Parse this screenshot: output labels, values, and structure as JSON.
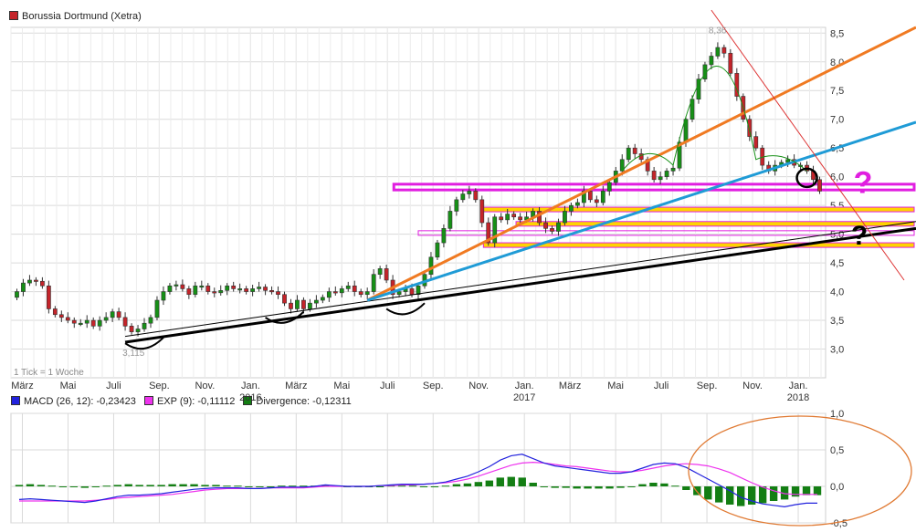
{
  "title": "Borussia Dortmund (Xetra)",
  "tick_note": "1 Tick = 1 Woche",
  "colors": {
    "up": "#169016",
    "down": "#c4242a",
    "grid": "#dadada",
    "orange_line": "#f07a22",
    "blue_line": "#1f9bd6",
    "magenta": "#e01ee0",
    "yellow": "#ffd400",
    "macd": "#2222dd",
    "exp": "#ee33ee",
    "divergence": "#137e13",
    "ellipse": "#e07a33",
    "title_swatch": "#c4242a"
  },
  "x_axis": {
    "months": [
      {
        "label": "März",
        "t": 0.5
      },
      {
        "label": "Mai",
        "t": 2.5
      },
      {
        "label": "Juli",
        "t": 4.5
      },
      {
        "label": "Sep.",
        "t": 6.5
      },
      {
        "label": "Nov.",
        "t": 8.5
      },
      {
        "label": "Jan.",
        "t": 10.5
      },
      {
        "label": "März",
        "t": 12.5
      },
      {
        "label": "Mai",
        "t": 14.5
      },
      {
        "label": "Juli",
        "t": 16.5
      },
      {
        "label": "Sep.",
        "t": 18.5
      },
      {
        "label": "Nov.",
        "t": 20.5
      },
      {
        "label": "Jan.",
        "t": 22.5
      },
      {
        "label": "März",
        "t": 24.5
      },
      {
        "label": "Mai",
        "t": 26.5
      },
      {
        "label": "Juli",
        "t": 28.5
      },
      {
        "label": "Sep.",
        "t": 30.5
      },
      {
        "label": "Nov.",
        "t": 32.5
      },
      {
        "label": "Jan.",
        "t": 34.5
      }
    ],
    "years": [
      {
        "label": "2016",
        "t": 10.5
      },
      {
        "label": "2017",
        "t": 22.5
      },
      {
        "label": "2018",
        "t": 34.5
      }
    ]
  },
  "price_legend": [],
  "macd_legend": [
    {
      "label": "MACD (26, 12): -0,23423",
      "color": "#2222dd"
    },
    {
      "label": "EXP (9): -0,11112",
      "color": "#ee33ee"
    },
    {
      "label": "Divergence: -0,12311",
      "color": "#137e13"
    }
  ],
  "annotations": {
    "high_label": "8,36",
    "low_label": "3,115",
    "question_mark": "?"
  },
  "chart_data": [
    {
      "type": "candlestick",
      "title": "Borussia Dortmund (Xetra)",
      "y_range": [
        2.5,
        8.6
      ],
      "y_ticks": [
        {
          "value": 3.0,
          "label": "3,0"
        },
        {
          "value": 3.5,
          "label": "3,5"
        },
        {
          "value": 4.0,
          "label": "4,0"
        },
        {
          "value": 4.5,
          "label": "4,5"
        },
        {
          "value": 5.0,
          "label": "5,0"
        },
        {
          "value": 5.5,
          "label": "5,5"
        },
        {
          "value": 6.0,
          "label": "6,0"
        },
        {
          "value": 6.5,
          "label": "6,5"
        },
        {
          "value": 7.0,
          "label": "7,0"
        },
        {
          "value": 7.5,
          "label": "7,5"
        },
        {
          "value": 8.0,
          "label": "8,0"
        },
        {
          "value": 8.5,
          "label": "8,5"
        }
      ],
      "closes": [
        4.0,
        4.15,
        4.2,
        4.18,
        4.1,
        3.7,
        3.6,
        3.55,
        3.5,
        3.45,
        3.45,
        3.5,
        3.4,
        3.5,
        3.55,
        3.65,
        3.55,
        3.4,
        3.3,
        3.35,
        3.45,
        3.55,
        3.85,
        4.0,
        4.1,
        4.12,
        4.05,
        3.95,
        4.1,
        4.1,
        4.0,
        3.98,
        4.02,
        4.1,
        4.05,
        4.05,
        4.0,
        4.05,
        4.08,
        4.02,
        4.0,
        3.95,
        3.8,
        3.7,
        3.85,
        3.7,
        3.8,
        3.85,
        3.9,
        4.0,
        3.98,
        4.05,
        4.1,
        4.0,
        3.95,
        4.0,
        4.3,
        4.4,
        4.2,
        3.95,
        4.0,
        4.05,
        3.95,
        4.1,
        4.3,
        4.6,
        4.85,
        5.1,
        5.4,
        5.6,
        5.7,
        5.75,
        5.6,
        5.2,
        4.85,
        5.3,
        5.25,
        5.35,
        5.3,
        5.25,
        5.3,
        5.4,
        5.2,
        5.1,
        5.05,
        5.2,
        5.4,
        5.5,
        5.55,
        5.75,
        5.6,
        5.55,
        5.75,
        5.9,
        6.1,
        6.3,
        6.5,
        6.4,
        6.3,
        6.1,
        5.95,
        6.0,
        6.1,
        6.15,
        6.6,
        7.0,
        7.35,
        7.7,
        7.95,
        8.1,
        8.25,
        8.15,
        7.8,
        7.4,
        7.0,
        6.7,
        6.5,
        6.2,
        6.1,
        6.2,
        6.25,
        6.3,
        6.2,
        6.2,
        6.1,
        5.95,
        5.75
      ],
      "macd": [
        -0.18,
        -0.17,
        -0.18,
        -0.19,
        -0.2,
        -0.21,
        -0.22,
        -0.2,
        -0.17,
        -0.14,
        -0.12,
        -0.12,
        -0.11,
        -0.1,
        -0.08,
        -0.06,
        -0.04,
        -0.03,
        -0.02,
        -0.02,
        -0.02,
        -0.03,
        -0.03,
        -0.02,
        -0.01,
        -0.01,
        -0.01,
        0.0,
        0.02,
        0.01,
        0.0,
        0.0,
        0.0,
        0.01,
        0.02,
        0.03,
        0.03,
        0.03,
        0.04,
        0.06,
        0.1,
        0.14,
        0.2,
        0.27,
        0.36,
        0.42,
        0.44,
        0.38,
        0.32,
        0.28,
        0.26,
        0.24,
        0.22,
        0.2,
        0.18,
        0.18,
        0.2,
        0.25,
        0.3,
        0.32,
        0.31,
        0.26,
        0.18,
        0.1,
        0.02,
        -0.06,
        -0.15,
        -0.2,
        -0.24,
        -0.26,
        -0.28,
        -0.25,
        -0.23,
        -0.23
      ],
      "exp": [
        -0.2,
        -0.2,
        -0.2,
        -0.2,
        -0.2,
        -0.2,
        -0.2,
        -0.19,
        -0.18,
        -0.16,
        -0.15,
        -0.14,
        -0.13,
        -0.12,
        -0.11,
        -0.09,
        -0.07,
        -0.05,
        -0.04,
        -0.03,
        -0.03,
        -0.03,
        -0.03,
        -0.02,
        -0.02,
        -0.02,
        -0.02,
        -0.01,
        0.0,
        0.0,
        0.0,
        0.0,
        0.0,
        0.01,
        0.01,
        0.02,
        0.02,
        0.03,
        0.04,
        0.05,
        0.07,
        0.1,
        0.14,
        0.19,
        0.24,
        0.29,
        0.32,
        0.33,
        0.32,
        0.3,
        0.28,
        0.27,
        0.25,
        0.23,
        0.21,
        0.2,
        0.2,
        0.22,
        0.25,
        0.28,
        0.3,
        0.31,
        0.3,
        0.28,
        0.24,
        0.19,
        0.12,
        0.05,
        -0.01,
        -0.06,
        -0.1,
        -0.11,
        -0.11,
        -0.11
      ],
      "x_labels": [
        "März",
        "Mai",
        "Juli",
        "Sep.",
        "Nov.",
        "Jan.",
        "März",
        "Mai",
        "Juli",
        "Sep.",
        "Nov.",
        "Jan.",
        "März",
        "Mai",
        "Juli",
        "Sep.",
        "Nov.",
        "Jan."
      ]
    },
    {
      "type": "line",
      "title": "",
      "y_range": [
        -0.5,
        1.0
      ],
      "y_ticks": [
        {
          "value": -0.5,
          "label": "-0,5"
        },
        {
          "value": 0.0,
          "label": "0,0"
        },
        {
          "value": 0.5,
          "label": "0,5"
        },
        {
          "value": 1.0,
          "label": "1,0"
        }
      ],
      "series": [
        {
          "name": "MACD (26, 12): -0,23423",
          "values": []
        },
        {
          "name": "EXP (9): -0,11112",
          "values": []
        },
        {
          "name": "Divergence: -0,12311",
          "values": []
        }
      ]
    }
  ]
}
